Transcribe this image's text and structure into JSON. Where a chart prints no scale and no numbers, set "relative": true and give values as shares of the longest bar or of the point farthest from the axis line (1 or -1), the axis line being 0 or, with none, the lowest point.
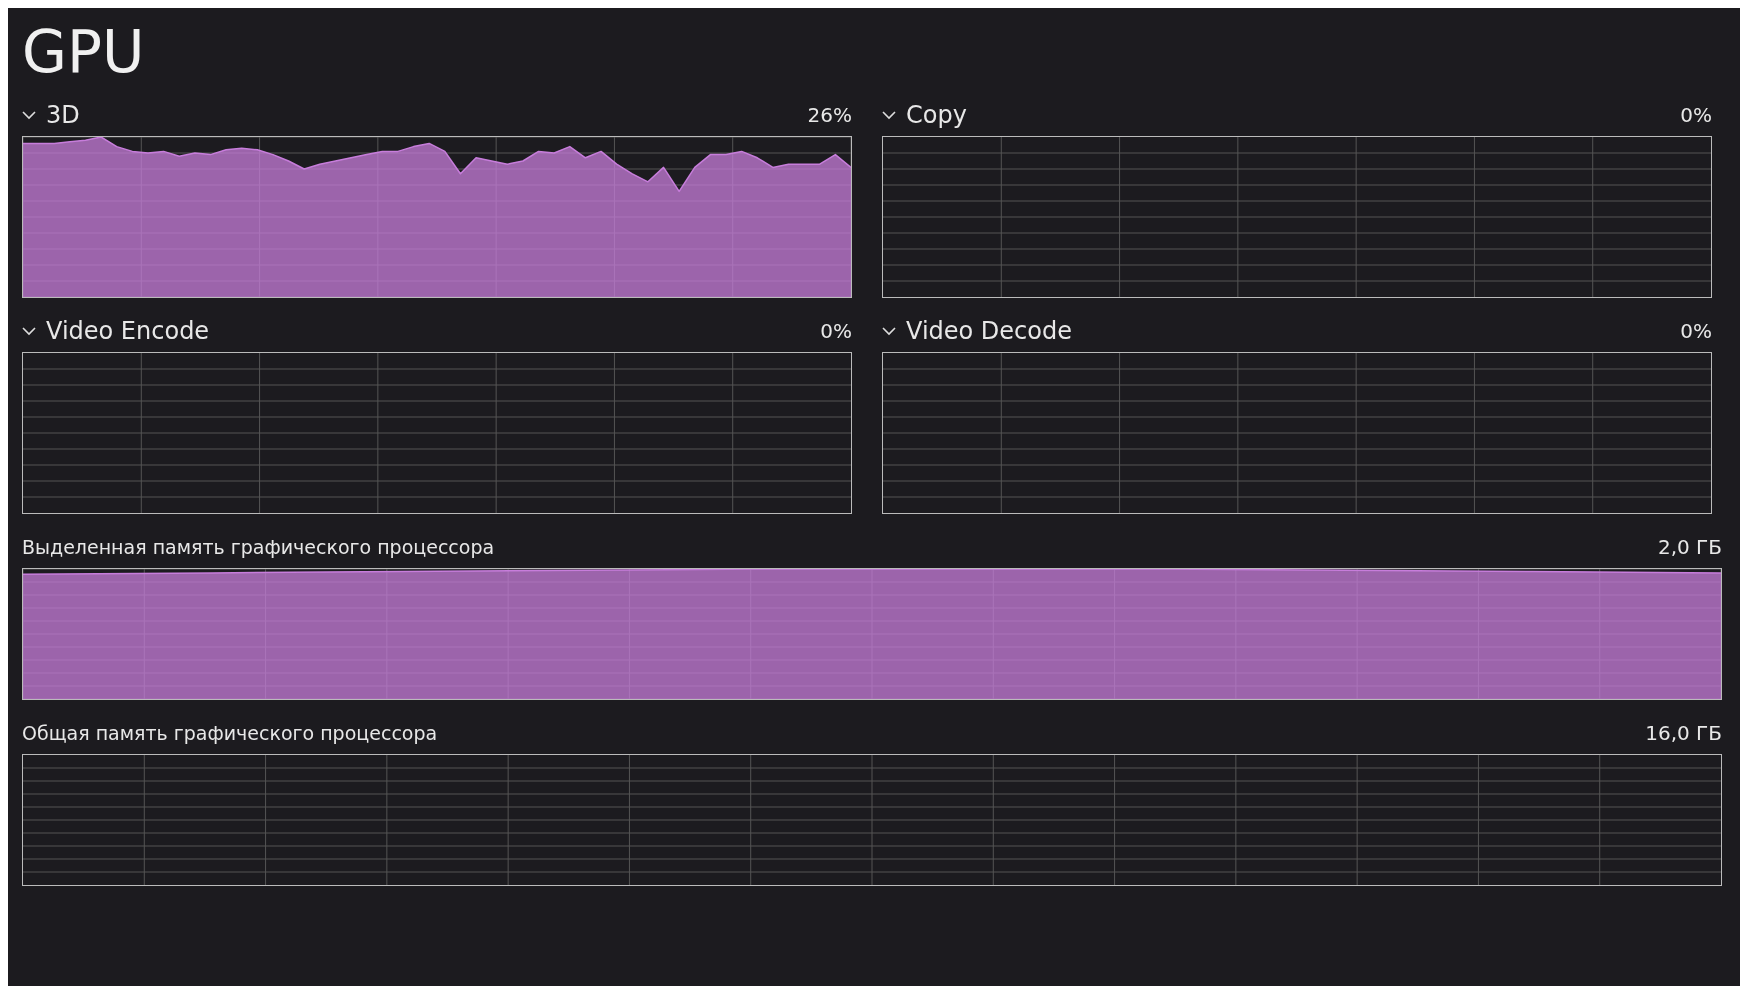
{
  "chart_data": [
    {
      "type": "other",
      "title": "GPU"
    },
    {
      "type": "area",
      "title": "3D",
      "annotations": [
        "26%"
      ],
      "relative": true,
      "grid": true,
      "color": "#c77ddb",
      "categories": [
        null,
        null,
        null,
        null,
        null,
        null,
        null,
        null,
        null,
        null,
        null,
        null,
        null,
        null,
        null,
        null,
        null,
        null,
        null,
        null,
        null,
        null,
        null,
        null,
        null,
        null,
        null,
        null,
        null,
        null,
        null,
        null,
        null,
        null,
        null,
        null,
        null,
        null,
        null,
        null,
        null,
        null,
        null,
        null,
        null,
        null,
        null,
        null,
        null,
        null,
        null,
        null,
        null,
        null
      ],
      "values": [
        0.96,
        0.96,
        0.96,
        0.97,
        0.98,
        1,
        0.94,
        0.91,
        0.9,
        0.91,
        0.88,
        0.9,
        0.89,
        0.92,
        0.93,
        0.92,
        0.89,
        0.85,
        0.8,
        0.83,
        0.85,
        0.87,
        0.89,
        0.91,
        0.91,
        0.94,
        0.96,
        0.91,
        0.77,
        0.87,
        0.85,
        0.83,
        0.85,
        0.91,
        0.9,
        0.94,
        0.87,
        0.91,
        0.83,
        0.77,
        0.72,
        0.81,
        0.66,
        0.81,
        0.89,
        0.89,
        0.91,
        0.87,
        0.81,
        0.83,
        0.83,
        0.83,
        0.89,
        0.81
      ]
    },
    {
      "type": "other",
      "title": "Copy",
      "annotations": [
        "0%"
      ]
    },
    {
      "type": "other",
      "title": "Video Encode",
      "annotations": [
        "0%"
      ]
    },
    {
      "type": "other",
      "title": "Video Decode",
      "annotations": [
        "0%"
      ]
    },
    {
      "type": "area",
      "title": "Выделенная память графического процессора",
      "annotations": [
        "2,0 ГБ"
      ],
      "relative": true,
      "grid": true,
      "color": "#c77ddb",
      "categories": [
        null,
        null,
        null,
        null,
        null,
        null,
        null,
        null,
        null,
        null
      ],
      "values": [
        0.96,
        0.97,
        0.98,
        0.99,
        1,
        1,
        1,
        0.99,
        0.98,
        0.97
      ]
    },
    {
      "type": "other",
      "title": "Общая память графического процессора",
      "annotations": [
        "16,0 ГБ"
      ]
    }
  ]
}
